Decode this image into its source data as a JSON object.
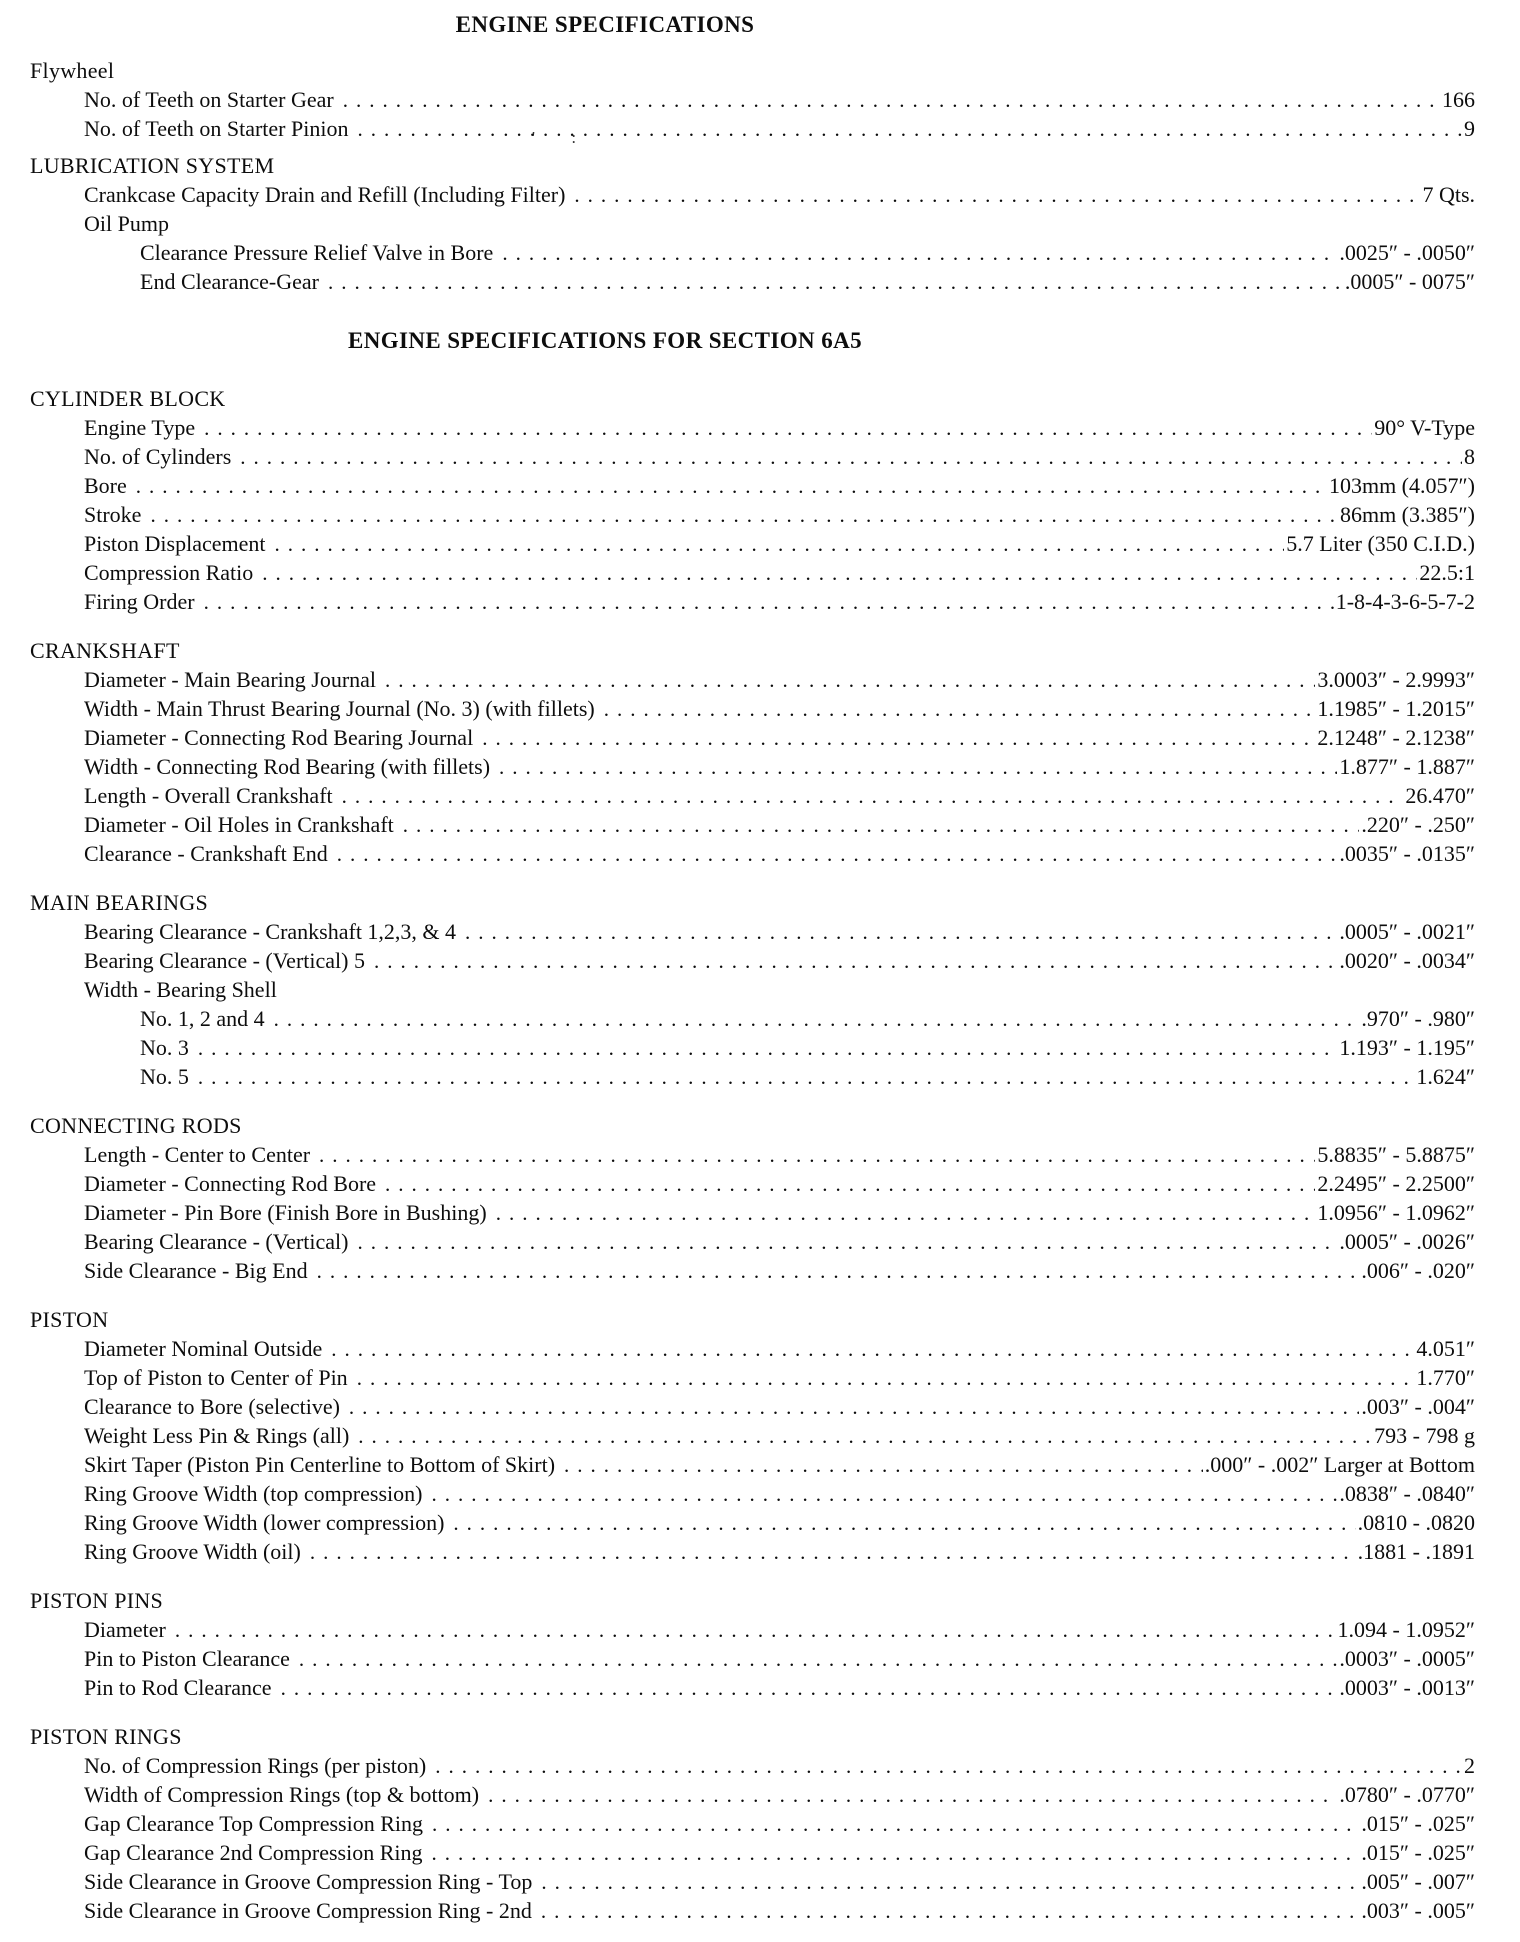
{
  "page": {
    "title": "ENGINE SPECIFICATIONS",
    "subtitle": "ENGINE SPECIFICATIONS FOR SECTION 6A5",
    "artifact": "' :"
  },
  "sections": [
    {
      "name": "Flywheel",
      "rows": [
        {
          "label": "No. of Teeth on Starter Gear",
          "value": "166"
        },
        {
          "label": "No. of Teeth on Starter Pinion",
          "value": "9"
        }
      ]
    },
    {
      "name": "LUBRICATION SYSTEM",
      "rows": [
        {
          "label": "Crankcase Capacity Drain and Refill (Including Filter)",
          "value": "7 Qts."
        },
        {
          "label": "Oil Pump",
          "value": null
        },
        {
          "label": "Clearance Pressure Relief Valve in Bore",
          "value": ".0025″ - .0050″"
        },
        {
          "label": "End Clearance-Gear",
          "value": ".0005″ - 0075″"
        }
      ]
    },
    {
      "name": "CYLINDER BLOCK",
      "rows": [
        {
          "label": "Engine Type",
          "value": "90° V-Type"
        },
        {
          "label": "No. of Cylinders",
          "value": "8"
        },
        {
          "label": "Bore",
          "value": "103mm (4.057″)"
        },
        {
          "label": "Stroke",
          "value": "86mm (3.385″)"
        },
        {
          "label": "Piston Displacement",
          "value": "5.7 Liter (350 C.I.D.)"
        },
        {
          "label": "Compression Ratio",
          "value": "22.5:1"
        },
        {
          "label": "Firing Order",
          "value": "1-8-4-3-6-5-7-2"
        }
      ]
    },
    {
      "name": "CRANKSHAFT",
      "rows": [
        {
          "label": "Diameter - Main Bearing Journal",
          "value": "3.0003″ - 2.9993″"
        },
        {
          "label": "Width - Main Thrust Bearing Journal (No. 3) (with fillets)",
          "value": "1.1985″ - 1.2015″"
        },
        {
          "label": "Diameter - Connecting Rod Bearing Journal",
          "value": "2.1248″ - 2.1238″"
        },
        {
          "label": "Width - Connecting Rod Bearing (with fillets)",
          "value": "1.877″ - 1.887″"
        },
        {
          "label": "Length - Overall Crankshaft",
          "value": "26.470″"
        },
        {
          "label": "Diameter - Oil Holes in Crankshaft",
          "value": ".220″ - .250″"
        },
        {
          "label": "Clearance - Crankshaft End",
          "value": ".0035″ - .0135″"
        }
      ]
    },
    {
      "name": "MAIN BEARINGS",
      "rows": [
        {
          "label": "Bearing Clearance - Crankshaft 1,2,3, & 4",
          "value": ".0005″ - .0021″"
        },
        {
          "label": "Bearing Clearance - (Vertical) 5",
          "value": ".0020″ - .0034″"
        },
        {
          "label": "Width - Bearing Shell",
          "value": null
        },
        {
          "label": "No. 1, 2 and 4",
          "value": ".970″ - .980″"
        },
        {
          "label": "No. 3",
          "value": "1.193″ - 1.195″"
        },
        {
          "label": "No. 5",
          "value": "1.624″"
        }
      ]
    },
    {
      "name": "CONNECTING RODS",
      "rows": [
        {
          "label": "Length - Center to Center",
          "value": "5.8835″ - 5.8875″"
        },
        {
          "label": "Diameter - Connecting Rod Bore",
          "value": "2.2495″ - 2.2500″"
        },
        {
          "label": "Diameter - Pin Bore (Finish Bore in Bushing)",
          "value": "1.0956″ - 1.0962″"
        },
        {
          "label": "Bearing Clearance - (Vertical)",
          "value": ".0005″ - .0026″"
        },
        {
          "label": "Side Clearance - Big End",
          "value": ".006″ - .020″"
        }
      ]
    },
    {
      "name": "PISTON",
      "rows": [
        {
          "label": "Diameter Nominal Outside",
          "value": "4.051″"
        },
        {
          "label": "Top of Piston to Center of Pin",
          "value": "1.770″"
        },
        {
          "label": "Clearance to Bore (selective)",
          "value": ".003″ - .004″"
        },
        {
          "label": "Weight Less Pin & Rings (all)",
          "value": "793 - 798 g"
        },
        {
          "label": "Skirt Taper (Piston Pin Centerline to Bottom of Skirt)",
          "value": ".000″ - .002″ Larger at Bottom"
        },
        {
          "label": "Ring Groove Width (top compression)",
          "value": ".0838″ - .0840″"
        },
        {
          "label": "Ring Groove Width (lower compression)",
          "value": ".0810 - .0820"
        },
        {
          "label": "Ring Groove Width (oil)",
          "value": ".1881 - .1891"
        }
      ]
    },
    {
      "name": "PISTON PINS",
      "rows": [
        {
          "label": "Diameter",
          "value": "1.094 - 1.0952″"
        },
        {
          "label": "Pin to Piston Clearance",
          "value": ".0003″ - .0005″"
        },
        {
          "label": "Pin to Rod Clearance",
          "value": ".0003″ - .0013″"
        }
      ]
    },
    {
      "name": "PISTON RINGS",
      "rows": [
        {
          "label": "No. of Compression Rings (per piston)",
          "value": "2"
        },
        {
          "label": "Width of Compression Rings (top & bottom)",
          "value": ".0780″ - .0770″"
        },
        {
          "label": "Gap Clearance Top Compression Ring",
          "value": ".015″ - .025″"
        },
        {
          "label": "Gap Clearance 2nd Compression Ring",
          "value": ".015″ - .025″"
        },
        {
          "label": "Side Clearance in Groove Compression Ring - Top",
          "value": ".005″ - .007″"
        },
        {
          "label": "Side Clearance in Groove Compression Ring - 2nd",
          "value": ".003″ - .005″"
        }
      ]
    }
  ]
}
